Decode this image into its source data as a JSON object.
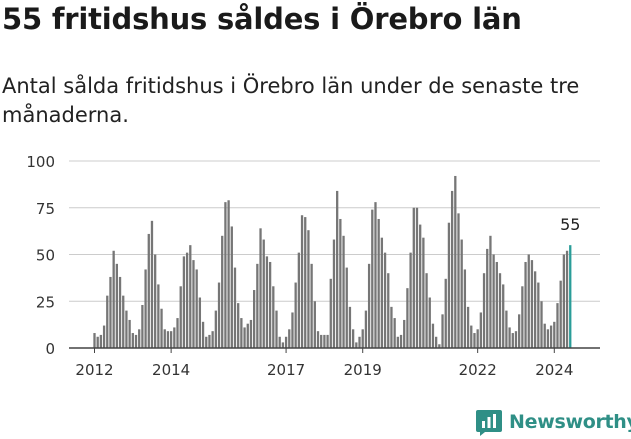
{
  "header": {
    "title": "55 fritidshus såldes i Örebro län",
    "subtitle": "Antal sålda fritidshus i Örebro län under de senaste tre månaderna."
  },
  "colors": {
    "bar": "#767676",
    "highlight": "#2a9d99",
    "grid": "#cccccc",
    "axis": "#444444",
    "brand": "#2f8f86"
  },
  "brand": {
    "name": "Newsworthy",
    "icon": "newsworthy-logo-icon"
  },
  "chart_data": {
    "type": "bar",
    "title": "55 fritidshus såldes i Örebro län",
    "subtitle": "Antal sålda fritidshus i Örebro län under de senaste tre månaderna.",
    "xlabel": "",
    "ylabel": "",
    "ylim": [
      0,
      100
    ],
    "yticks": [
      0,
      25,
      50,
      75,
      100
    ],
    "xticks": [
      {
        "label": "2012",
        "index": 0
      },
      {
        "label": "2014",
        "index": 24
      },
      {
        "label": "2017",
        "index": 60
      },
      {
        "label": "2019",
        "index": 84
      },
      {
        "label": "2022",
        "index": 120
      },
      {
        "label": "2024",
        "index": 144
      }
    ],
    "grid": true,
    "highlight_last": true,
    "last_label": "55",
    "values": [
      8,
      6,
      7,
      12,
      28,
      38,
      52,
      45,
      38,
      28,
      20,
      15,
      8,
      7,
      10,
      23,
      42,
      61,
      68,
      50,
      34,
      21,
      10,
      9,
      9,
      11,
      16,
      33,
      49,
      51,
      55,
      47,
      42,
      27,
      14,
      6,
      7,
      9,
      20,
      35,
      60,
      78,
      79,
      65,
      43,
      24,
      16,
      11,
      13,
      15,
      31,
      45,
      64,
      58,
      49,
      46,
      33,
      20,
      6,
      3,
      6,
      10,
      19,
      35,
      51,
      71,
      70,
      63,
      45,
      25,
      9,
      7,
      7,
      7,
      37,
      58,
      84,
      69,
      60,
      43,
      22,
      10,
      3,
      6,
      10,
      20,
      45,
      74,
      78,
      69,
      59,
      51,
      40,
      22,
      16,
      6,
      7,
      15,
      32,
      51,
      75,
      75,
      66,
      59,
      40,
      27,
      13,
      6,
      2,
      18,
      37,
      67,
      84,
      92,
      72,
      58,
      42,
      22,
      12,
      8,
      10,
      19,
      40,
      53,
      60,
      50,
      46,
      40,
      34,
      20,
      11,
      8,
      9,
      18,
      33,
      46,
      50,
      47,
      41,
      35,
      25,
      13,
      10,
      12,
      14,
      24,
      36,
      50,
      52,
      55
    ]
  }
}
